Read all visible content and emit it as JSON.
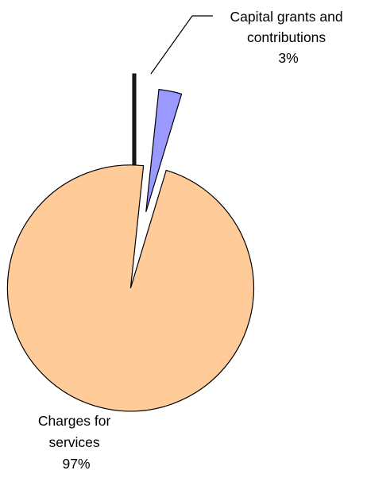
{
  "chart_data": {
    "type": "pie",
    "title": "",
    "slices": [
      {
        "label": [
          "Capital grants and",
          "contributions"
        ],
        "percent_label": "3%",
        "value": 3,
        "color": "#9999ff"
      },
      {
        "label": [
          "Charges for",
          "services"
        ],
        "percent_label": "97%",
        "value": 97,
        "color": "#ffcc99"
      }
    ]
  }
}
